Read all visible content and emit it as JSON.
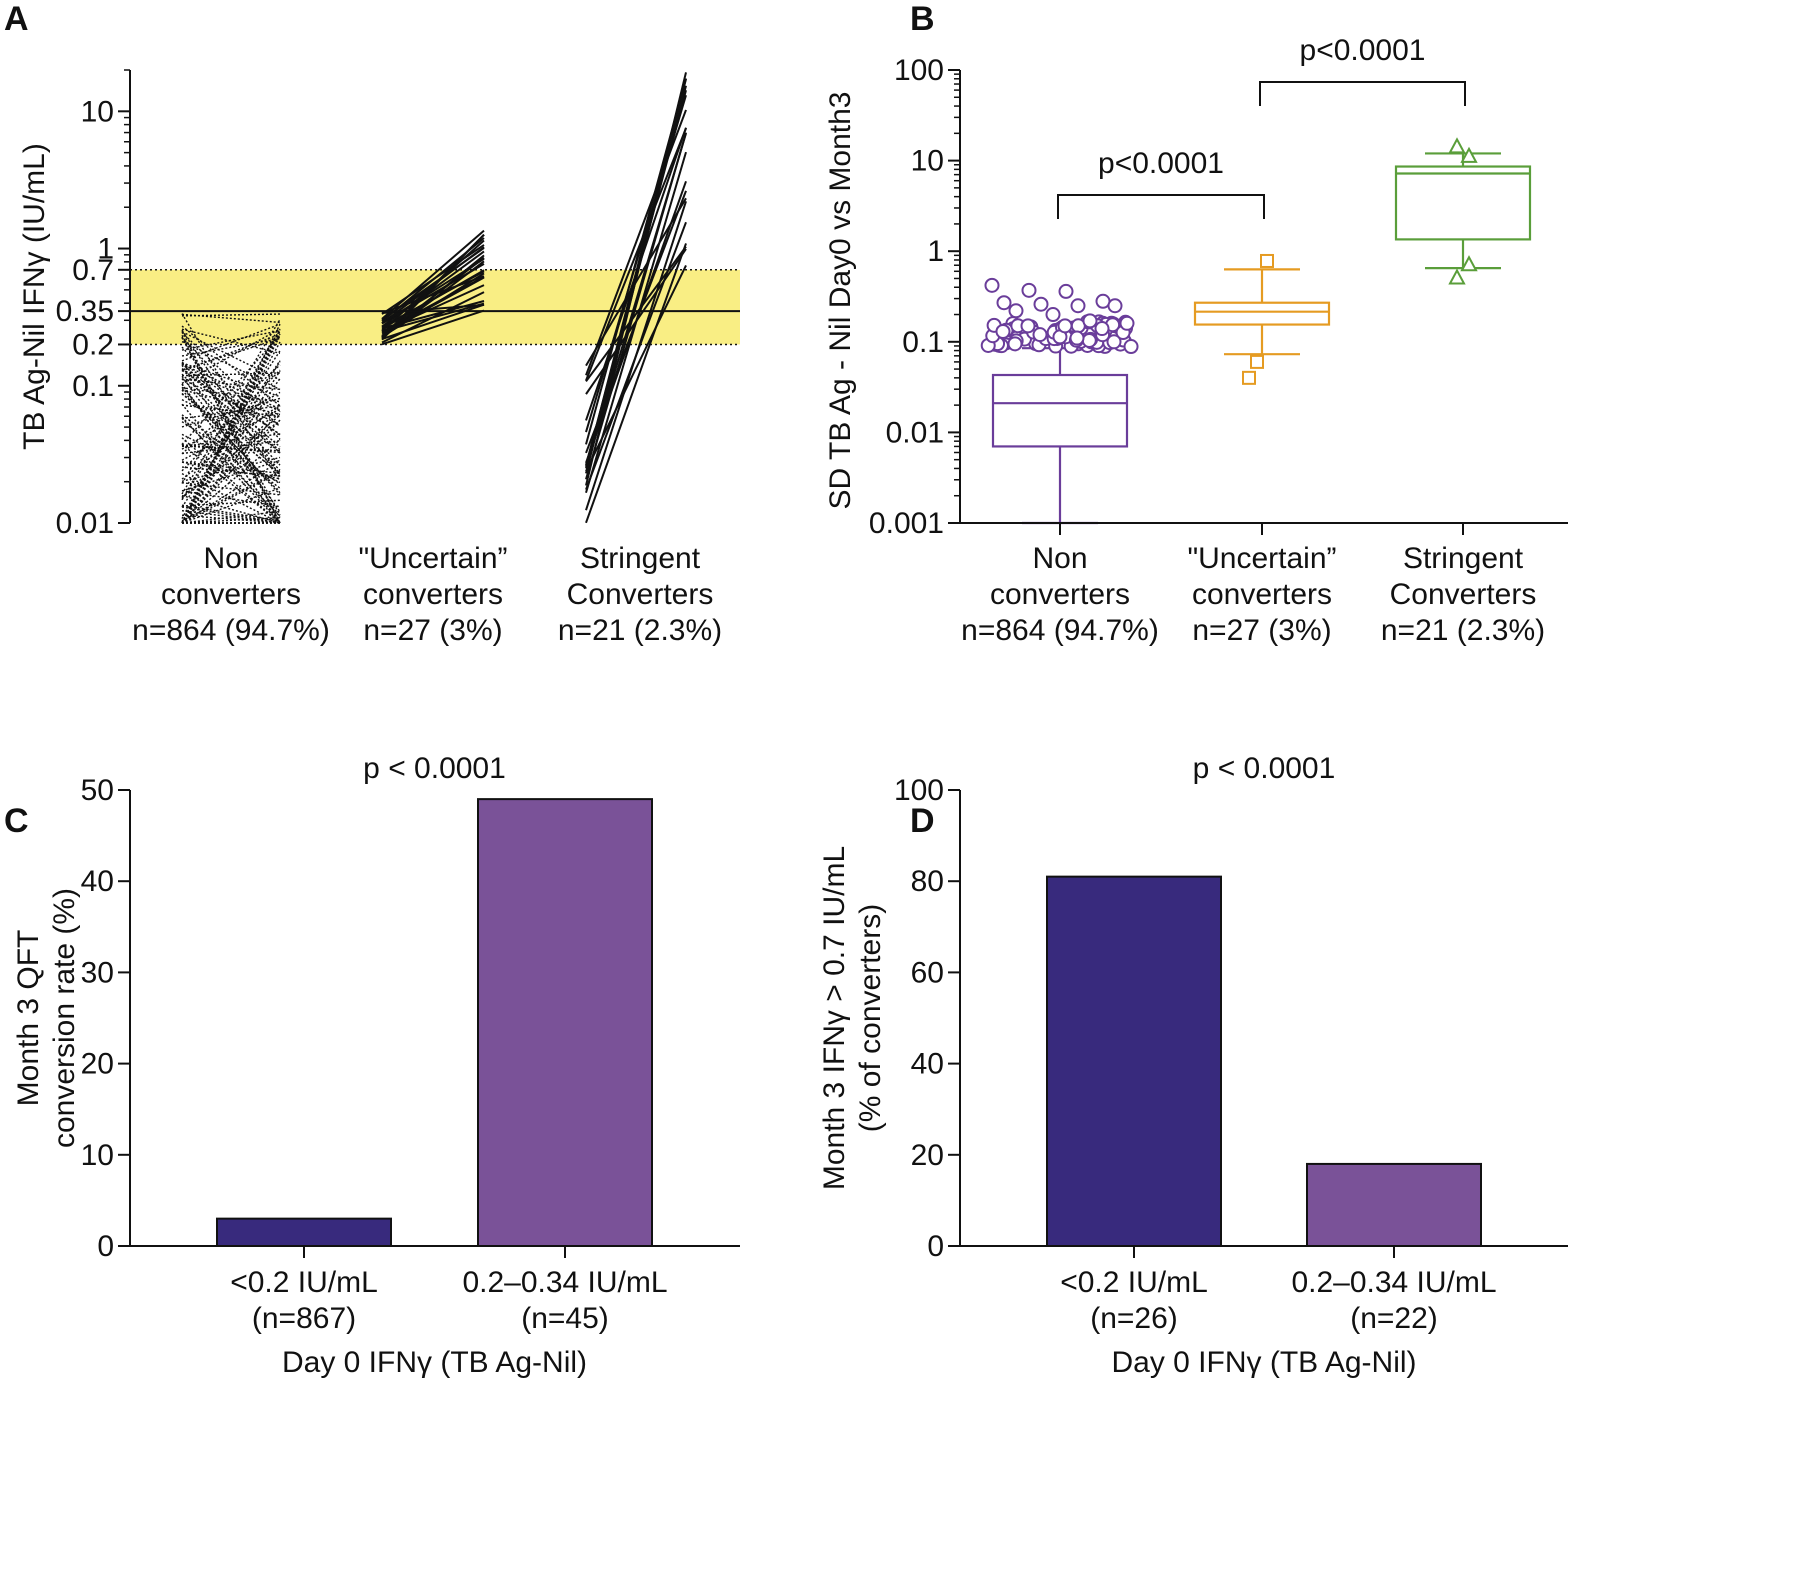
{
  "panels": {
    "A": "A",
    "B": "B",
    "C": "C",
    "D": "D"
  },
  "chart_data": [
    {
      "id": "A",
      "type": "line",
      "ylabel": "TB Ag-Nil IFNγ (IU/mL)",
      "yscale": "log",
      "ylim": [
        0.01,
        20
      ],
      "yticks": [
        {
          "label": "10",
          "value": 10
        },
        {
          "label": "1",
          "value": 1
        },
        {
          "label": "0.7",
          "value": 0.7
        },
        {
          "label": "0.35",
          "value": 0.35
        },
        {
          "label": "0.2",
          "value": 0.2
        },
        {
          "label": "0.1",
          "value": 0.1
        },
        {
          "label": "0.01",
          "value": 0.01
        }
      ],
      "threshold": 0.35,
      "band": [
        0.2,
        0.7
      ],
      "band_color": "#f9ee84",
      "categories": [
        [
          "Non",
          "converters",
          "n=864 (94.7%)"
        ],
        [
          "\"Uncertain”",
          "converters",
          "n=27 (3%)"
        ],
        [
          "Stringent",
          "Converters",
          "n=21 (2.3%)"
        ]
      ],
      "groups": [
        {
          "name": "Non converters",
          "style": "dotted",
          "day0_range": [
            0.01,
            0.34
          ],
          "month3_range": [
            0.01,
            0.34
          ]
        },
        {
          "name": "Uncertain converters",
          "style": "solid",
          "day0_range": [
            0.2,
            0.34
          ],
          "month3_range": [
            0.35,
            1.4
          ]
        },
        {
          "name": "Stringent Converters",
          "style": "solid",
          "day0_range": [
            0.01,
            0.15
          ],
          "month3_range": [
            0.7,
            20
          ]
        }
      ]
    },
    {
      "id": "B",
      "type": "box",
      "ylabel": "SD TB Ag - Nil Day0 vs Month3",
      "yscale": "log",
      "ylim": [
        0.001,
        100
      ],
      "yticks": [
        {
          "label": "100",
          "value": 100
        },
        {
          "label": "10",
          "value": 10
        },
        {
          "label": "1",
          "value": 1
        },
        {
          "label": "0.1",
          "value": 0.1
        },
        {
          "label": "0.01",
          "value": 0.01
        },
        {
          "label": "0.001",
          "value": 0.001
        }
      ],
      "categories": [
        [
          "Non",
          "converters",
          "n=864 (94.7%)"
        ],
        [
          "\"Uncertain”",
          "converters",
          "n=27 (3%)"
        ],
        [
          "Stringent",
          "Converters",
          "n=21 (2.3%)"
        ]
      ],
      "boxes": [
        {
          "name": "Non converters",
          "color": "#6a3d9a",
          "marker": "circle",
          "whisker_low": 0.001,
          "q1": 0.007,
          "median": 0.021,
          "q3": 0.043,
          "whisker_high": 0.085,
          "outliers": [
            0.42,
            0.37,
            0.36,
            0.28,
            0.27,
            0.26,
            0.25,
            0.25,
            0.22,
            0.2,
            0.17,
            0.16,
            0.15,
            0.15,
            0.14,
            0.13,
            0.12,
            0.11,
            0.1,
            0.095
          ]
        },
        {
          "name": "Uncertain converters",
          "color": "#e59b22",
          "marker": "square",
          "whisker_low": 0.073,
          "q1": 0.155,
          "median": 0.215,
          "q3": 0.27,
          "whisker_high": 0.63,
          "outliers": [
            0.78,
            0.06,
            0.04
          ]
        },
        {
          "name": "Stringent Converters",
          "color": "#5a9e3a",
          "marker": "triangle",
          "whisker_low": 0.65,
          "q1": 1.35,
          "median": 7.2,
          "q3": 8.6,
          "whisker_high": 12,
          "outliers": [
            14,
            11,
            0.7,
            0.5
          ]
        }
      ],
      "comparisons": [
        {
          "from": 0,
          "to": 1,
          "label": "p<0.0001"
        },
        {
          "from": 1,
          "to": 2,
          "label": "p<0.0001"
        }
      ]
    },
    {
      "id": "C",
      "type": "bar",
      "title": "p < 0.0001",
      "ylabel": [
        "Month 3 QFT",
        "conversion rate (%)"
      ],
      "xlabel": "Day 0 IFNγ (TB Ag-Nil)",
      "ylim": [
        0,
        50
      ],
      "yticks": [
        0,
        10,
        20,
        30,
        40,
        50
      ],
      "categories": [
        [
          "<0.2 IU/mL",
          "(n=867)"
        ],
        [
          "0.2–0.34 IU/mL",
          "(n=45)"
        ]
      ],
      "values": [
        3,
        49
      ],
      "colors": [
        "#382a7d",
        "#7a5298"
      ]
    },
    {
      "id": "D",
      "type": "bar",
      "title": "p < 0.0001",
      "ylabel": [
        "Month 3 IFNγ > 0.7 IU/mL",
        "(% of converters)"
      ],
      "xlabel": "Day 0 IFNγ (TB Ag-Nil)",
      "ylim": [
        0,
        100
      ],
      "yticks": [
        0,
        20,
        40,
        60,
        80,
        100
      ],
      "categories": [
        [
          "<0.2 IU/mL",
          "(n=26)"
        ],
        [
          "0.2–0.34 IU/mL",
          "(n=22)"
        ]
      ],
      "values": [
        81,
        18
      ],
      "colors": [
        "#382a7d",
        "#7a5298"
      ]
    }
  ]
}
